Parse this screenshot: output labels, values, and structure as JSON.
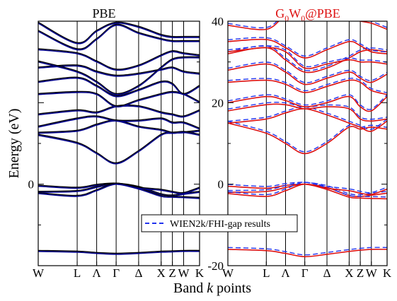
{
  "figure": {
    "ylabel": "Energy (eV)",
    "xlabel_main": "Band ",
    "xlabel_k": "k",
    "xlabel_tail": " points",
    "legend_label": "WIEN2k/FHI-gap results",
    "colors": {
      "axis": "#000000",
      "pbe": "#00008b",
      "gw": "#dd1111",
      "reference": "#2233ee"
    }
  },
  "chart_data": [
    {
      "type": "line",
      "panel": "left",
      "title": "PBE",
      "title_color": "#000000",
      "xlabel": "Band k points",
      "ylabel": "Energy (eV)",
      "x_ticks": [
        "W",
        "L",
        "Λ",
        "Γ",
        "Δ",
        "X",
        "Z",
        "W",
        "K"
      ],
      "x_tick_positions": [
        0.0,
        0.866,
        1.299,
        1.732,
        2.232,
        2.732,
        2.982,
        3.232,
        3.586
      ],
      "xlim": [
        0.0,
        3.586
      ],
      "ylim": [
        -20,
        40
      ],
      "y_ticks": [
        0
      ],
      "y_tick_labels": [
        "0"
      ],
      "grid": false,
      "bands": [
        {
          "name": "band-1",
          "values": [
            -16.5,
            -16.7,
            -17.0,
            -17.2,
            -17.0,
            -16.7,
            -16.6,
            -16.5,
            -16.5
          ]
        },
        {
          "name": "band-2",
          "values": [
            -0.5,
            -1.0,
            -0.3,
            0.0,
            -0.8,
            -2.6,
            -2.9,
            -2.5,
            -2.0
          ]
        },
        {
          "name": "band-3",
          "values": [
            -2.0,
            -1.8,
            -0.8,
            0.0,
            -1.2,
            -3.0,
            -3.2,
            -3.3,
            -3.5
          ]
        },
        {
          "name": "band-4",
          "values": [
            -2.3,
            -3.0,
            -1.6,
            0.0,
            -1.0,
            -1.5,
            -2.0,
            -2.3,
            -1.0
          ]
        },
        {
          "name": "band-5",
          "values": [
            12.0,
            10.0,
            7.5,
            5.0,
            8.0,
            12.0,
            12.5,
            12.6,
            13.0
          ]
        },
        {
          "name": "band-6",
          "values": [
            12.5,
            13.0,
            14.5,
            15.5,
            14.0,
            13.2,
            12.5,
            12.7,
            12.0
          ]
        },
        {
          "name": "band-7",
          "values": [
            14.0,
            16.0,
            16.5,
            15.5,
            15.5,
            16.0,
            15.0,
            15.0,
            13.5
          ]
        },
        {
          "name": "band-8",
          "values": [
            17.0,
            18.0,
            17.5,
            19.0,
            19.0,
            17.5,
            17.0,
            16.5,
            18.0
          ]
        },
        {
          "name": "band-9",
          "values": [
            22.0,
            22.5,
            22.0,
            19.0,
            20.5,
            22.0,
            22.5,
            22.0,
            20.0
          ]
        },
        {
          "name": "band-10",
          "values": [
            25.0,
            26.0,
            24.0,
            21.5,
            23.0,
            25.0,
            24.5,
            22.0,
            24.0
          ]
        },
        {
          "name": "band-11",
          "values": [
            28.5,
            29.0,
            27.5,
            26.5,
            27.0,
            28.0,
            28.5,
            27.5,
            27.0
          ]
        },
        {
          "name": "band-12",
          "values": [
            30.0,
            27.5,
            25.0,
            22.0,
            24.0,
            28.5,
            30.5,
            31.0,
            31.0
          ]
        },
        {
          "name": "band-13",
          "values": [
            33.0,
            32.0,
            30.0,
            28.0,
            29.0,
            31.5,
            32.5,
            32.0,
            31.5
          ]
        },
        {
          "name": "band-14",
          "values": [
            37.5,
            33.0,
            35.5,
            39.0,
            37.0,
            35.5,
            35.0,
            35.0,
            35.0
          ]
        },
        {
          "name": "band-15",
          "values": [
            39.5,
            34.5,
            37.5,
            39.5,
            38.5,
            36.5,
            36.0,
            36.0,
            36.0
          ]
        }
      ]
    },
    {
      "type": "line",
      "panel": "right",
      "title": "G0W0@PBE",
      "title_main": "G",
      "title_sub1": "0",
      "title_mid": "W",
      "title_sub2": "0",
      "title_tail": "@PBE",
      "title_color": "#dd1111",
      "xlabel": "Band k points",
      "ylabel": "Energy (eV)",
      "x_ticks": [
        "W",
        "L",
        "Λ",
        "Γ",
        "Δ",
        "X",
        "Z",
        "W",
        "K"
      ],
      "x_tick_positions": [
        0.0,
        0.866,
        1.299,
        1.732,
        2.232,
        2.732,
        2.982,
        3.232,
        3.586
      ],
      "xlim": [
        0.0,
        3.586
      ],
      "ylim": [
        -20,
        40
      ],
      "y_ticks": [
        -20,
        0,
        20,
        40
      ],
      "y_tick_labels": [
        "-20",
        "0",
        "20",
        "40"
      ],
      "grid": false,
      "legend": {
        "label": "WIEN2k/FHI-gap results",
        "style": "dashed",
        "placement": "lower-center"
      },
      "bands": [
        {
          "name": "band-1",
          "values": [
            -16.0,
            -16.3,
            -17.0,
            -17.8,
            -17.2,
            -16.5,
            -16.2,
            -16.0,
            -16.0
          ]
        },
        {
          "name": "band-2",
          "values": [
            -0.5,
            -1.0,
            -0.3,
            0.0,
            -0.8,
            -2.8,
            -3.0,
            -2.7,
            -2.2
          ]
        },
        {
          "name": "band-3",
          "values": [
            -2.0,
            -1.8,
            -0.8,
            0.0,
            -1.3,
            -3.2,
            -3.4,
            -3.5,
            -3.6
          ]
        },
        {
          "name": "band-4",
          "values": [
            -2.3,
            -3.0,
            -1.6,
            0.0,
            -1.0,
            -1.6,
            -2.2,
            -2.5,
            -1.2
          ]
        },
        {
          "name": "band-5",
          "values": [
            15.0,
            12.5,
            10.0,
            7.5,
            10.0,
            14.0,
            13.5,
            14.0,
            13.5
          ]
        },
        {
          "name": "band-6",
          "values": [
            15.0,
            16.0,
            17.5,
            18.5,
            17.0,
            15.0,
            14.0,
            13.0,
            15.5
          ]
        },
        {
          "name": "band-7",
          "values": [
            18.0,
            19.5,
            19.5,
            18.5,
            19.0,
            18.5,
            16.0,
            15.5,
            16.0
          ]
        },
        {
          "name": "band-8",
          "values": [
            20.0,
            21.5,
            20.5,
            19.0,
            20.0,
            21.5,
            19.0,
            18.0,
            21.5
          ]
        },
        {
          "name": "band-9",
          "values": [
            25.0,
            25.5,
            24.5,
            22.5,
            24.0,
            25.5,
            25.0,
            23.0,
            22.0
          ]
        },
        {
          "name": "band-10",
          "values": [
            28.0,
            29.5,
            27.5,
            24.5,
            26.0,
            27.5,
            26.0,
            25.0,
            27.0
          ]
        },
        {
          "name": "band-11",
          "values": [
            32.0,
            33.5,
            30.5,
            27.5,
            28.5,
            31.0,
            32.5,
            33.0,
            32.5
          ]
        },
        {
          "name": "band-12",
          "values": [
            32.5,
            33.5,
            32.5,
            28.5,
            29.5,
            30.5,
            30.0,
            30.0,
            29.5
          ]
        },
        {
          "name": "band-13",
          "values": [
            35.0,
            35.5,
            33.5,
            31.0,
            33.0,
            35.0,
            34.0,
            32.5,
            32.0
          ]
        },
        {
          "name": "band-14",
          "values": [
            39.0,
            38.0,
            41.5,
            43.0,
            42.0,
            40.5,
            40.0,
            39.5,
            38.0
          ]
        }
      ]
    }
  ]
}
